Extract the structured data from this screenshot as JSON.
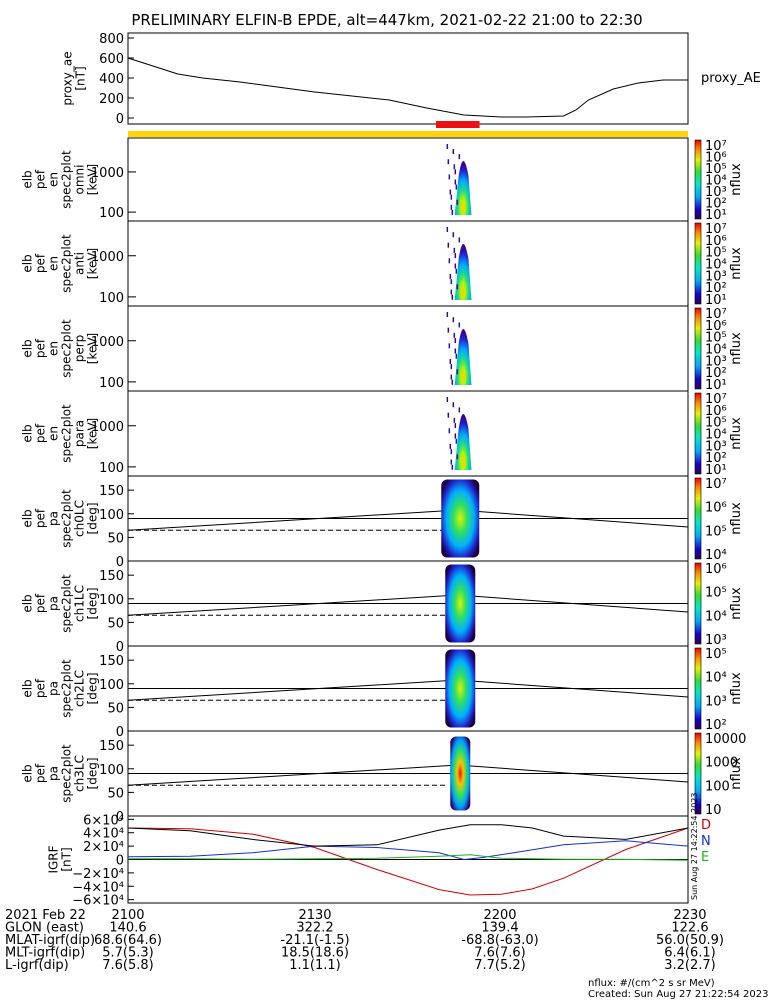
{
  "title": "PRELIMINARY ELFIN-B EPDE, alt=447km, 2021-02-22 21:00 to 22:30",
  "colors": {
    "flag_bar": "#ffd400",
    "science_zone": "#ee1111",
    "trace_d": "#d40000",
    "trace_n": "#1030d0",
    "trace_e": "#20b020"
  },
  "chart_data": [
    {
      "type": "line",
      "panel": "proxy_ae",
      "ylabel_lines": [
        "proxy_ae",
        "[nT]"
      ],
      "right_label": "proxy_AE",
      "yticks": [
        "800",
        "600",
        "400",
        "200",
        "0"
      ],
      "ylim": [
        -60,
        850
      ],
      "x_minutes": [
        0,
        4,
        8,
        12,
        18,
        24,
        30,
        36,
        42,
        48,
        54,
        60,
        64,
        70,
        72,
        74,
        78,
        82,
        86,
        90
      ],
      "values": [
        600,
        520,
        440,
        400,
        360,
        310,
        260,
        220,
        180,
        100,
        30,
        10,
        10,
        20,
        80,
        180,
        290,
        350,
        380,
        380
      ]
    },
    {
      "type": "heatmap",
      "panel": "en_spec2plot_omni",
      "ylabel_lines": [
        "elb",
        "pef",
        "en",
        "spec2plot",
        "omni",
        "[keV]"
      ],
      "yticks": [
        "1000",
        "100"
      ],
      "ylim_kev": [
        60,
        7000
      ],
      "color_label": "nflux",
      "color_ticks": [
        "10⁷",
        "10⁶",
        "10⁵",
        "10⁴",
        "10³",
        "10²",
        "10¹"
      ]
    },
    {
      "type": "heatmap",
      "panel": "en_spec2plot_anti",
      "ylabel_lines": [
        "elb",
        "pef",
        "en",
        "spec2plot",
        "anti",
        "[keV]"
      ],
      "yticks": [
        "1000",
        "100"
      ],
      "ylim_kev": [
        60,
        7000
      ],
      "color_label": "nflux",
      "color_ticks": [
        "10⁷",
        "10⁶",
        "10⁵",
        "10⁴",
        "10³",
        "10²",
        "10¹"
      ]
    },
    {
      "type": "heatmap",
      "panel": "en_spec2plot_perp",
      "ylabel_lines": [
        "elb",
        "pef",
        "en",
        "spec2plot",
        "perp",
        "[keV]"
      ],
      "yticks": [
        "1000",
        "100"
      ],
      "ylim_kev": [
        60,
        7000
      ],
      "color_label": "nflux",
      "color_ticks": [
        "10⁷",
        "10⁶",
        "10⁵",
        "10⁴",
        "10³",
        "10²",
        "10¹"
      ]
    },
    {
      "type": "heatmap",
      "panel": "en_spec2plot_para",
      "ylabel_lines": [
        "elb",
        "pef",
        "en",
        "spec2plot",
        "para",
        "[keV]"
      ],
      "yticks": [
        "1000",
        "100"
      ],
      "ylim_kev": [
        60,
        7000
      ],
      "color_label": "nflux",
      "color_ticks": [
        "10⁷",
        "10⁶",
        "10⁵",
        "10⁴",
        "10³",
        "10²",
        "10¹"
      ]
    },
    {
      "type": "heatmap",
      "panel": "pa_spec2plot_ch0LC",
      "ylabel_lines": [
        "elb",
        "pef",
        "pa",
        "spec2plot",
        "ch0LC",
        "[deg]"
      ],
      "yticks": [
        "150",
        "100",
        "50",
        "0"
      ],
      "ylim": [
        0,
        180
      ],
      "color_label": "nflux",
      "color_ticks": [
        "10⁷",
        "10⁶",
        "10⁵",
        "10⁴"
      ]
    },
    {
      "type": "heatmap",
      "panel": "pa_spec2plot_ch1LC",
      "ylabel_lines": [
        "elb",
        "pef",
        "pa",
        "spec2plot",
        "ch1LC",
        "[deg]"
      ],
      "yticks": [
        "150",
        "100",
        "50",
        "0"
      ],
      "ylim": [
        0,
        180
      ],
      "color_label": "nflux",
      "color_ticks": [
        "10⁶",
        "10⁵",
        "10⁴",
        "10³"
      ]
    },
    {
      "type": "heatmap",
      "panel": "pa_spec2plot_ch2LC",
      "ylabel_lines": [
        "elb",
        "pef",
        "pa",
        "spec2plot",
        "ch2LC",
        "[deg]"
      ],
      "yticks": [
        "150",
        "100",
        "50",
        "0"
      ],
      "ylim": [
        0,
        180
      ],
      "color_label": "nflux",
      "color_ticks": [
        "10⁵",
        "10⁴",
        "10³",
        "10²"
      ]
    },
    {
      "type": "heatmap",
      "panel": "pa_spec2plot_ch3LC",
      "ylabel_lines": [
        "elb",
        "pef",
        "pa",
        "spec2plot",
        "ch3LC",
        "[deg]"
      ],
      "yticks": [
        "150",
        "100",
        "50",
        "0"
      ],
      "ylim": [
        0,
        180
      ],
      "color_label": "nflux",
      "color_ticks": [
        "10000",
        "1000",
        "100",
        "10"
      ]
    },
    {
      "type": "line",
      "panel": "igrf",
      "ylabel_lines": [
        "IGRF",
        "[nT]"
      ],
      "yticks": [
        "6×10⁴",
        "4×10⁴",
        "2×10⁴",
        "0",
        "−2×10⁴",
        "−4×10⁴",
        "−6×10⁴"
      ],
      "ylim": [
        -65000,
        65000
      ],
      "series": [
        {
          "name": "D",
          "color": "#d40000",
          "x_minutes": [
            0,
            10,
            20,
            30,
            40,
            50,
            55,
            60,
            65,
            70,
            80,
            90
          ],
          "values": [
            47000,
            46000,
            38000,
            18000,
            -15000,
            -45000,
            -53000,
            -52000,
            -44000,
            -28000,
            15000,
            47000
          ]
        },
        {
          "name": "N",
          "color": "#1030d0",
          "x_minutes": [
            0,
            10,
            20,
            30,
            40,
            50,
            54,
            57,
            62,
            70,
            80,
            90
          ],
          "values": [
            4000,
            5000,
            10000,
            20000,
            18000,
            10000,
            0,
            3000,
            10000,
            22000,
            28000,
            20000
          ]
        },
        {
          "name": "E",
          "color": "#20b020",
          "x_minutes": [
            0,
            10,
            20,
            30,
            40,
            50,
            55,
            60,
            70,
            80,
            90
          ],
          "values": [
            1000,
            1000,
            500,
            1000,
            2000,
            5000,
            7000,
            2000,
            500,
            200,
            -1000
          ]
        },
        {
          "name": "",
          "color": "#000000",
          "x_minutes": [
            0,
            10,
            20,
            30,
            40,
            50,
            55,
            60,
            65,
            70,
            80,
            90
          ],
          "values": [
            47000,
            43000,
            30000,
            20000,
            22000,
            44000,
            52000,
            52000,
            47000,
            35000,
            30000,
            47000
          ]
        }
      ]
    }
  ],
  "orbit_table": {
    "rows": [
      {
        "label": "2021 Feb 22",
        "values": [
          "2100",
          "2130",
          "2200",
          "2230"
        ]
      },
      {
        "label": "GLON (east)",
        "values": [
          "140.6",
          "322.2",
          "139.4",
          "122.6"
        ]
      },
      {
        "label": "MLAT-igrf(dip)",
        "values": [
          "68.6(64.6)",
          "-21.1(-1.5)",
          "-68.8(-63.0)",
          "56.0(50.9)"
        ]
      },
      {
        "label": "MLT-igrf(dip)",
        "values": [
          "5.7(5.3)",
          "18.5(18.6)",
          "7.6(7.6)",
          "6.4(6.1)"
        ]
      },
      {
        "label": "L-igrf(dip)",
        "values": [
          "7.6(5.8)",
          "1.1(1.1)",
          "7.7(5.2)",
          "3.2(2.7)"
        ]
      }
    ]
  },
  "footer": {
    "units": "nflux: #/(cm^2 s sr MeV)",
    "created": "Created: Sun Aug 27 21:22:54 2023",
    "side_stamp": "Sun Aug 27 14:22:54 2023"
  }
}
